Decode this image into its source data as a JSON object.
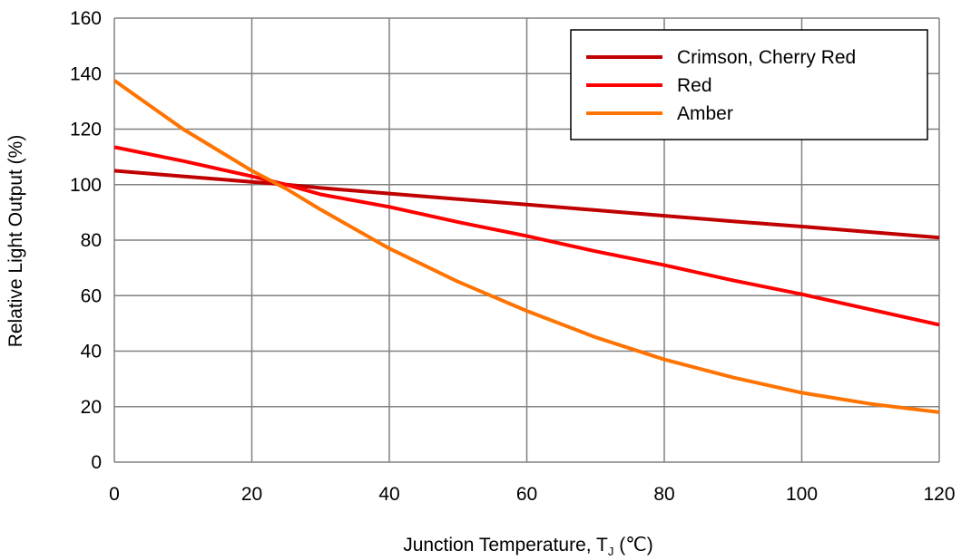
{
  "chart_data": {
    "type": "line",
    "title": "",
    "xlabel": "Junction Temperature, T",
    "xlabel_subscript": "J",
    "xlabel_unit": " (℃)",
    "ylabel": "Relative Light Output (%)",
    "xlim": [
      0,
      120
    ],
    "ylim": [
      0,
      160
    ],
    "x_ticks": [
      "0",
      "20",
      "40",
      "60",
      "80",
      "100",
      "120"
    ],
    "y_ticks": [
      "0",
      "20",
      "40",
      "60",
      "80",
      "100",
      "120",
      "140",
      "160"
    ],
    "grid": true,
    "legend_position": "top-right",
    "series": [
      {
        "name": "Crimson, Cherry Red",
        "color": "#c00000",
        "points": [
          [
            0,
            105
          ],
          [
            10,
            103
          ],
          [
            20,
            101
          ],
          [
            25,
            100
          ],
          [
            30,
            98.8
          ],
          [
            40,
            96.8
          ],
          [
            50,
            94.8
          ],
          [
            60,
            92.8
          ],
          [
            70,
            90.8
          ],
          [
            80,
            88.8
          ],
          [
            90,
            86.8
          ],
          [
            100,
            84.9
          ],
          [
            110,
            82.9
          ],
          [
            120,
            80.9
          ]
        ]
      },
      {
        "name": "Red",
        "color": "#ff0000",
        "points": [
          [
            0,
            113.5
          ],
          [
            10,
            108.5
          ],
          [
            20,
            103
          ],
          [
            25,
            100
          ],
          [
            30,
            96.5
          ],
          [
            40,
            92
          ],
          [
            50,
            86.5
          ],
          [
            60,
            81.5
          ],
          [
            70,
            76
          ],
          [
            80,
            71
          ],
          [
            90,
            65.5
          ],
          [
            100,
            60.5
          ],
          [
            110,
            55
          ],
          [
            120,
            49.5
          ]
        ]
      },
      {
        "name": "Amber",
        "color": "#ff7300",
        "points": [
          [
            0,
            137.5
          ],
          [
            10,
            120
          ],
          [
            20,
            105
          ],
          [
            25,
            98.5
          ],
          [
            30,
            91
          ],
          [
            40,
            77
          ],
          [
            50,
            65
          ],
          [
            60,
            54.5
          ],
          [
            70,
            45
          ],
          [
            80,
            37
          ],
          [
            90,
            30.5
          ],
          [
            100,
            25
          ],
          [
            110,
            21
          ],
          [
            120,
            18
          ]
        ]
      }
    ]
  }
}
